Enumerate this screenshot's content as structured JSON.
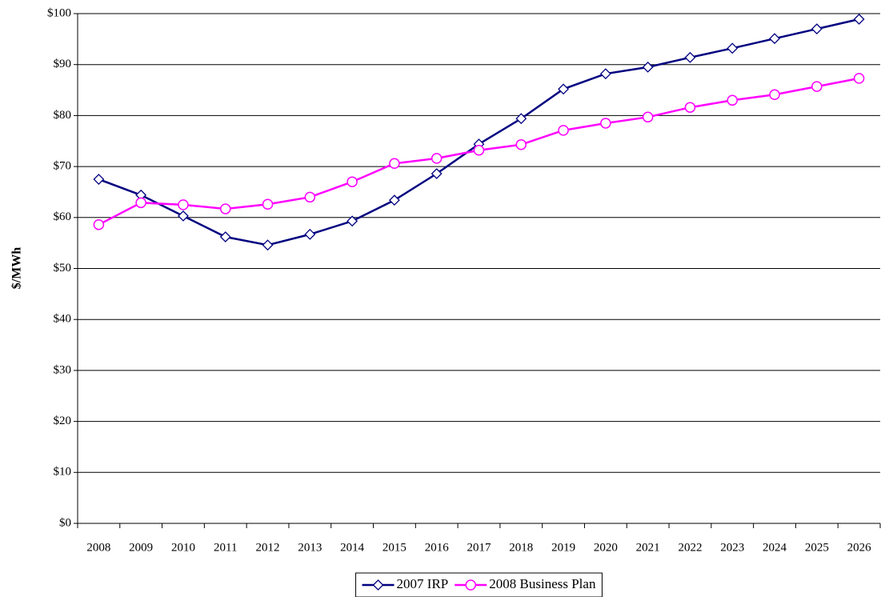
{
  "chart_data": {
    "type": "line",
    "y_label": "$/MWh",
    "categories": [
      "2008",
      "2009",
      "2010",
      "2011",
      "2012",
      "2013",
      "2014",
      "2015",
      "2016",
      "2017",
      "2018",
      "2019",
      "2020",
      "2021",
      "2022",
      "2023",
      "2024",
      "2025",
      "2026"
    ],
    "series": [
      {
        "name": "2007 IRP",
        "color": "#000080",
        "marker": "diamond",
        "values": [
          67.5,
          64.4,
          60.3,
          56.2,
          54.6,
          56.7,
          59.3,
          63.4,
          68.6,
          74.4,
          79.4,
          85.2,
          88.2,
          89.5,
          91.4,
          93.2,
          95.1,
          97.0,
          98.9
        ]
      },
      {
        "name": "2008 Business Plan",
        "color": "#ff00ff",
        "marker": "circle",
        "values": [
          58.6,
          62.9,
          62.5,
          61.7,
          62.6,
          64.0,
          67.0,
          70.6,
          71.6,
          73.2,
          74.3,
          77.1,
          78.5,
          79.7,
          81.6,
          83.0,
          84.1,
          85.7,
          87.3
        ]
      }
    ],
    "ylim": [
      0,
      100
    ],
    "yticks": [
      {
        "value": 0,
        "label": "$0"
      },
      {
        "value": 10,
        "label": "$10"
      },
      {
        "value": 20,
        "label": "$20"
      },
      {
        "value": 30,
        "label": "$30"
      },
      {
        "value": 40,
        "label": "$40"
      },
      {
        "value": 50,
        "label": "$50"
      },
      {
        "value": 60,
        "label": "$60"
      },
      {
        "value": 70,
        "label": "$70"
      },
      {
        "value": 80,
        "label": "$80"
      },
      {
        "value": 90,
        "label": "$90"
      },
      {
        "value": 100,
        "label": "$100"
      }
    ],
    "grid": true,
    "legend": "bottom"
  }
}
